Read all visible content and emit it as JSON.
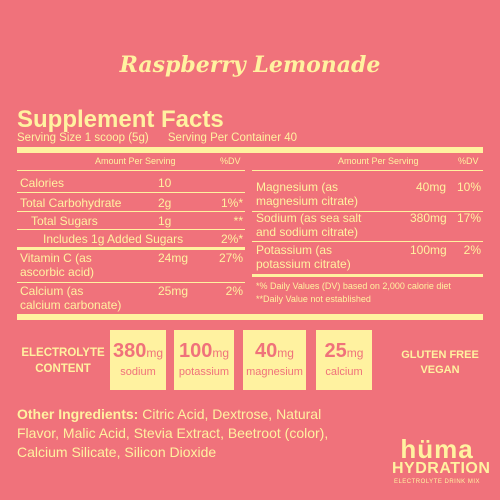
{
  "product_title": "Raspberry Lemonade",
  "facts": {
    "heading": "Supplement Facts",
    "serving_size": "Serving Size 1 scoop (5g)",
    "servings_per_container": "Serving Per Container 40",
    "col_amount": "Amount Per Serving",
    "col_dv": "%DV",
    "left_rows": [
      {
        "name": "Calories",
        "amount": "10",
        "dv": ""
      },
      {
        "name": "Total Carbohydrate",
        "amount": "2g",
        "dv": "1%*"
      },
      {
        "name": "Total Sugars",
        "amount": "1g",
        "dv": "**"
      },
      {
        "name": "Includes 1g Added Sugars",
        "amount": "",
        "dv": "2%*"
      },
      {
        "name": "Vitamin C (as",
        "name2": "ascorbic acid)",
        "amount": "24mg",
        "dv": "27%"
      },
      {
        "name": "Calcium (as",
        "name2": "calcium carbonate)",
        "amount": "25mg",
        "dv": "2%"
      }
    ],
    "right_rows": [
      {
        "name": "Magnesium (as",
        "name2": "magnesium citrate)",
        "amount": "40mg",
        "dv": "10%"
      },
      {
        "name": "Sodium (as sea salt",
        "name2": "and sodium citrate)",
        "amount": "380mg",
        "dv": "17%"
      },
      {
        "name": "Potassium (as",
        "name2": "potassium citrate)",
        "amount": "100mg",
        "dv": "2%"
      }
    ],
    "footnote1": "*% Daily Values (DV) based on 2,000 calorie diet",
    "footnote2": "**Daily Value not established"
  },
  "electrolyte": {
    "label_line1": "ELECTROLYTE",
    "label_line2": "CONTENT",
    "items": [
      {
        "value": "380",
        "unit": "mg",
        "name": "sodium"
      },
      {
        "value": "100",
        "unit": "mg",
        "name": "potassium"
      },
      {
        "value": "40",
        "unit": "mg",
        "name": "magnesium"
      },
      {
        "value": "25",
        "unit": "mg",
        "name": "calcium"
      }
    ]
  },
  "badges": {
    "line1": "GLUTEN FREE",
    "line2": "VEGAN"
  },
  "ingredients": {
    "label": "Other Ingredients:",
    "text": "Citric Acid, Dextrose, Natural Flavor, Malic Acid, Stevia Extract, Beetroot (color), Calcium Silicate, Silicon Dioxide"
  },
  "brand": {
    "name": "hüma",
    "line2": "HYDRATION",
    "tagline": "ELECTROLYTE DRINK MIX"
  },
  "colors": {
    "background": "#f0727b",
    "accent": "#fff2a0"
  }
}
